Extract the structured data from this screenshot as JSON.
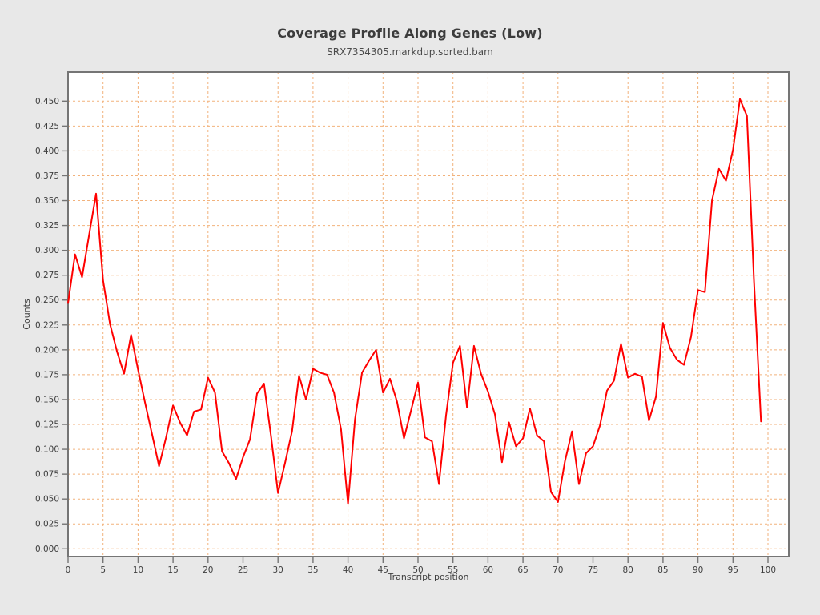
{
  "page": {
    "background_color": "#e8e8e8",
    "plot_background_color": "#ffffff",
    "frame_color": "#757575"
  },
  "header": {
    "title": "Coverage Profile Along Genes (Low)",
    "subtitle": "SRX7354305.markdup.sorted.bam"
  },
  "chart_data": {
    "type": "line",
    "title": "Coverage Profile Along Genes (Low)",
    "subtitle": "SRX7354305.markdup.sorted.bam",
    "xlabel": "Transcript position",
    "ylabel": "Counts",
    "xlim": [
      0,
      103
    ],
    "ylim": [
      0,
      0.479
    ],
    "x_ticks": [
      0,
      5,
      10,
      15,
      20,
      25,
      30,
      35,
      40,
      45,
      50,
      55,
      60,
      65,
      70,
      75,
      80,
      85,
      90,
      95,
      100
    ],
    "y_ticks": [
      0.0,
      0.025,
      0.05,
      0.075,
      0.1,
      0.125,
      0.15,
      0.175,
      0.2,
      0.225,
      0.25,
      0.275,
      0.3,
      0.325,
      0.35,
      0.375,
      0.4,
      0.425,
      0.45
    ],
    "grid": true,
    "grid_color": "#f2b27c",
    "line_color": "#ff0000",
    "legend_position": "none",
    "x_start": 0,
    "x_step": 1,
    "values": [
      0.247,
      0.296,
      0.273,
      0.315,
      0.357,
      0.27,
      0.226,
      0.198,
      0.176,
      0.215,
      0.18,
      0.147,
      0.115,
      0.083,
      0.112,
      0.144,
      0.127,
      0.114,
      0.138,
      0.14,
      0.172,
      0.157,
      0.098,
      0.086,
      0.07,
      0.092,
      0.11,
      0.156,
      0.166,
      0.113,
      0.056,
      0.086,
      0.118,
      0.174,
      0.15,
      0.181,
      0.177,
      0.175,
      0.157,
      0.12,
      0.045,
      0.13,
      0.177,
      0.189,
      0.2,
      0.157,
      0.171,
      0.148,
      0.111,
      0.139,
      0.167,
      0.112,
      0.108,
      0.065,
      0.134,
      0.187,
      0.204,
      0.142,
      0.204,
      0.176,
      0.158,
      0.135,
      0.087,
      0.127,
      0.103,
      0.111,
      0.141,
      0.114,
      0.108,
      0.057,
      0.047,
      0.088,
      0.118,
      0.065,
      0.096,
      0.103,
      0.124,
      0.159,
      0.169,
      0.206,
      0.172,
      0.176,
      0.173,
      0.129,
      0.153,
      0.227,
      0.202,
      0.19,
      0.185,
      0.213,
      0.26,
      0.258,
      0.35,
      0.382,
      0.37,
      0.401,
      0.452,
      0.435,
      0.27,
      0.128
    ]
  }
}
